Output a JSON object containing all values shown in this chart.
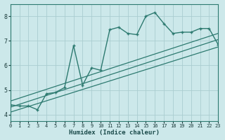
{
  "xlabel": "Humidex (Indice chaleur)",
  "ylabel": "",
  "bg_color": "#cce8ea",
  "line_color": "#2d7a70",
  "grid_color": "#aacdd0",
  "x_data": [
    0,
    1,
    2,
    3,
    4,
    5,
    6,
    7,
    8,
    9,
    10,
    11,
    12,
    13,
    14,
    15,
    16,
    17,
    18,
    19,
    20,
    21,
    22,
    23
  ],
  "y_main": [
    4.4,
    4.35,
    4.35,
    4.2,
    4.85,
    4.9,
    5.1,
    6.8,
    5.2,
    5.9,
    5.8,
    7.45,
    7.55,
    7.3,
    7.25,
    8.0,
    8.15,
    7.7,
    7.3,
    7.35,
    7.35,
    7.5,
    7.5,
    6.85
  ],
  "line1_x": [
    0,
    23
  ],
  "line1_y": [
    4.3,
    7.05
  ],
  "line2_x": [
    0,
    23
  ],
  "line2_y": [
    4.55,
    7.3
  ],
  "line3_x": [
    0,
    23
  ],
  "line3_y": [
    4.1,
    6.75
  ],
  "xlim": [
    0,
    23
  ],
  "ylim": [
    3.75,
    8.5
  ],
  "yticks": [
    4,
    5,
    6,
    7,
    8
  ],
  "xticks": [
    0,
    1,
    2,
    3,
    4,
    5,
    6,
    7,
    8,
    9,
    10,
    11,
    12,
    13,
    14,
    15,
    16,
    17,
    18,
    19,
    20,
    21,
    22,
    23
  ]
}
